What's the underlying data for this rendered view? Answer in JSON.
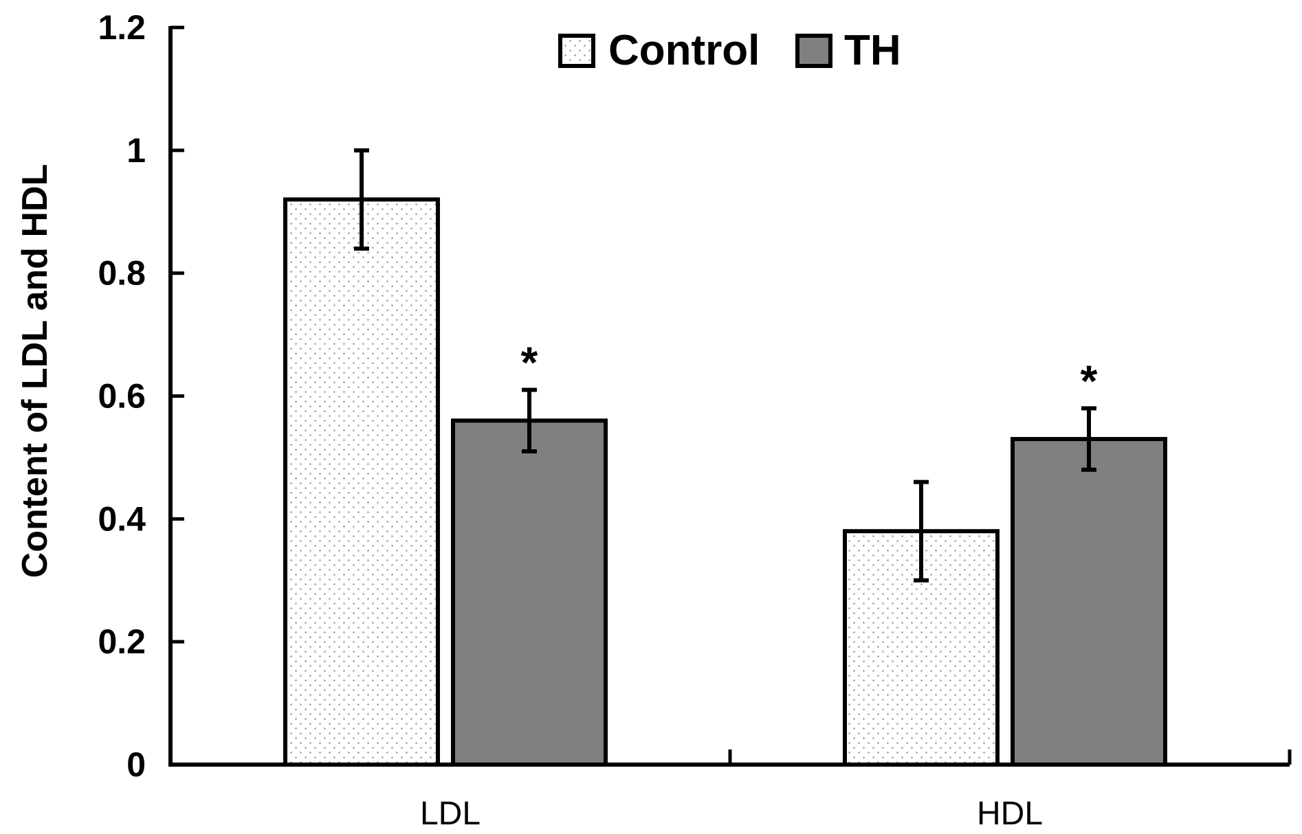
{
  "chart_data": {
    "type": "bar",
    "title": "",
    "xlabel": "",
    "ylabel": "Content of LDL and HDL",
    "categories": [
      "LDL",
      "HDL"
    ],
    "ylim": [
      0,
      1.2
    ],
    "yticks": [
      0,
      0.2,
      0.4,
      0.6,
      0.8,
      1,
      1.2
    ],
    "ytick_labels": [
      "0",
      "0.2",
      "0.4",
      "0.6",
      "0.8",
      "1",
      "1.2"
    ],
    "legend_position": "top-center",
    "grid": false,
    "series": [
      {
        "name": "Control",
        "color": "#ffffff",
        "pattern": "dotted",
        "values": [
          0.92,
          0.38
        ],
        "errors": [
          0.08,
          0.08
        ],
        "significance": [
          "",
          ""
        ]
      },
      {
        "name": "TH",
        "color": "#808080",
        "pattern": "solid",
        "values": [
          0.56,
          0.53
        ],
        "errors": [
          0.05,
          0.05
        ],
        "significance": [
          "*",
          "*"
        ]
      }
    ]
  }
}
